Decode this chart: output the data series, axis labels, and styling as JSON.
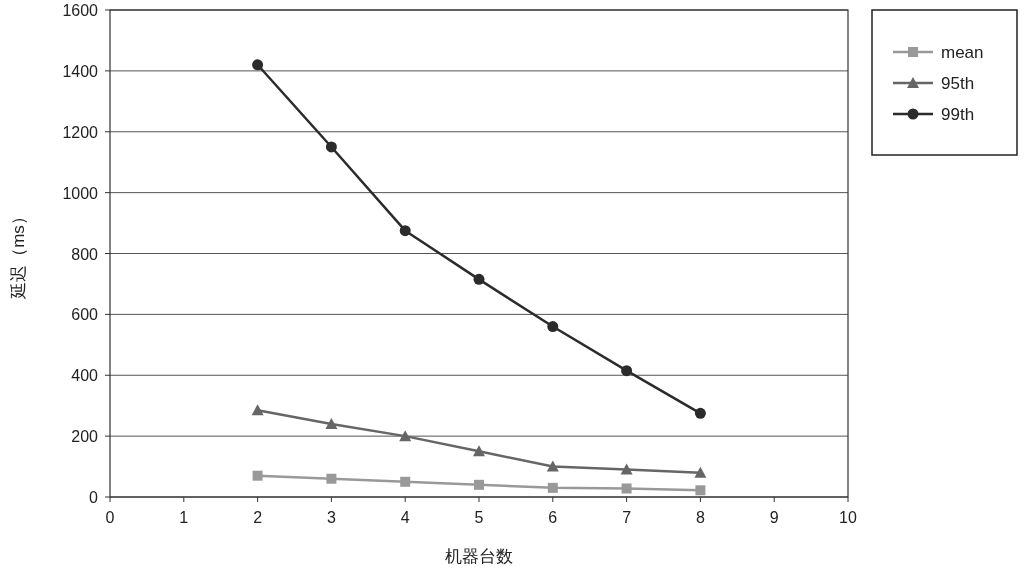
{
  "chart_data": {
    "type": "line",
    "xlabel": "机器台数",
    "ylabel": "延迟（ms）",
    "x": [
      2,
      3,
      4,
      5,
      6,
      7,
      8
    ],
    "xlim": [
      0,
      10
    ],
    "xticks": [
      0,
      1,
      2,
      3,
      4,
      5,
      6,
      7,
      8,
      9,
      10
    ],
    "ylim": [
      0,
      1600
    ],
    "yticks": [
      0,
      200,
      400,
      600,
      800,
      1000,
      1200,
      1400,
      1600
    ],
    "grid": "y",
    "legend": "top right",
    "series": [
      {
        "name": "mean",
        "color": "#999999",
        "marker": "square",
        "values": [
          70,
          60,
          50,
          40,
          30,
          28,
          22
        ]
      },
      {
        "name": "95th",
        "color": "#666666",
        "marker": "triangle",
        "values": [
          285,
          240,
          200,
          150,
          100,
          90,
          80
        ]
      },
      {
        "name": "99th",
        "color": "#2b2b2b",
        "marker": "circle",
        "values": [
          1420,
          1150,
          875,
          715,
          560,
          415,
          275
        ]
      }
    ]
  }
}
